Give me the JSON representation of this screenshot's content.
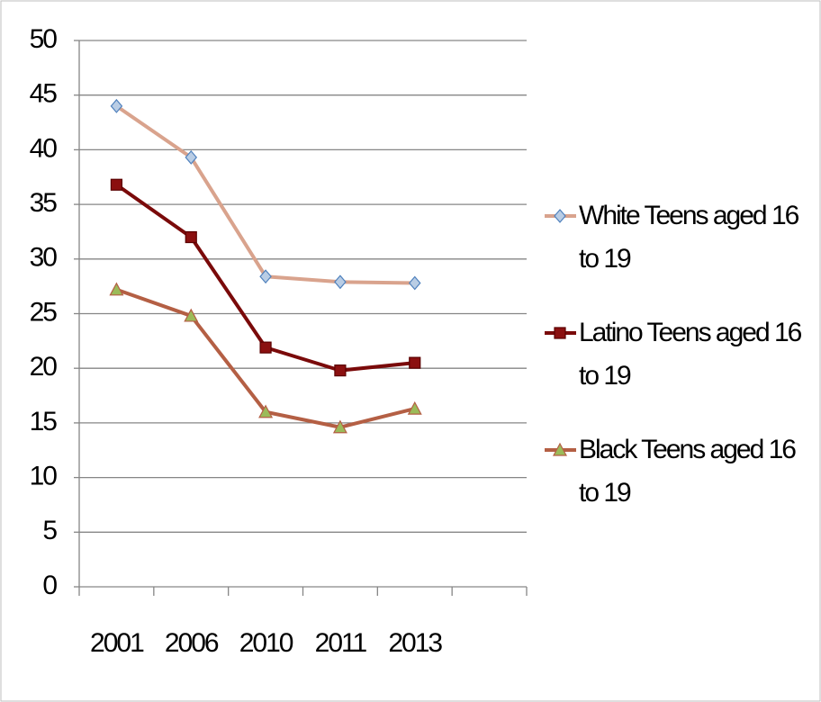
{
  "chart_data": {
    "type": "line",
    "categories": [
      "2001",
      "2006",
      "2010",
      "2011",
      "2013",
      null
    ],
    "series": [
      {
        "name": "White Teens aged 16 to 19",
        "color": "#d9a38d",
        "marker": "diamond",
        "marker_fill": "#b9cde5",
        "marker_edge": "#4f81bd",
        "values": [
          44,
          39.3,
          28.4,
          27.9,
          27.8,
          null
        ]
      },
      {
        "name": "Latino Teens aged 16 to 19",
        "color": "#7a0a0a",
        "marker": "square",
        "marker_fill": "#8b1010",
        "marker_edge": "#5a0000",
        "values": [
          36.8,
          32,
          21.9,
          19.8,
          20.5,
          null
        ]
      },
      {
        "name": "Black Teens aged 16 to 19",
        "color": "#b45f44",
        "marker": "triangle",
        "marker_fill": "#9bbb59",
        "marker_edge": "#b45f44",
        "values": [
          27.2,
          24.8,
          16,
          14.6,
          16.3,
          null
        ]
      }
    ],
    "ylim": [
      0,
      50
    ],
    "yticks": [
      0,
      5,
      10,
      15,
      20,
      25,
      30,
      35,
      40,
      45,
      50
    ],
    "grid": true,
    "legend": "right"
  }
}
